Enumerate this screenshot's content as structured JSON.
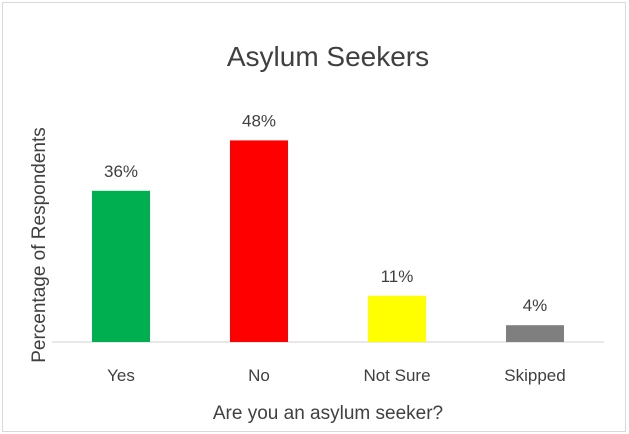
{
  "chart_data": {
    "type": "bar",
    "title": "Asylum Seekers",
    "xlabel": "Are you an asylum seeker?",
    "ylabel": "Percentage of Respondents",
    "categories": [
      "Yes",
      "No",
      "Not Sure",
      "Skipped"
    ],
    "values": [
      36,
      48,
      11,
      4
    ],
    "data_labels": [
      "36%",
      "48%",
      "11%",
      "4%"
    ],
    "colors": [
      "#00b050",
      "#ff0000",
      "#ffff00",
      "#7f7f7f"
    ],
    "ylim": [
      0,
      60
    ],
    "grid": false,
    "legend": "none"
  }
}
